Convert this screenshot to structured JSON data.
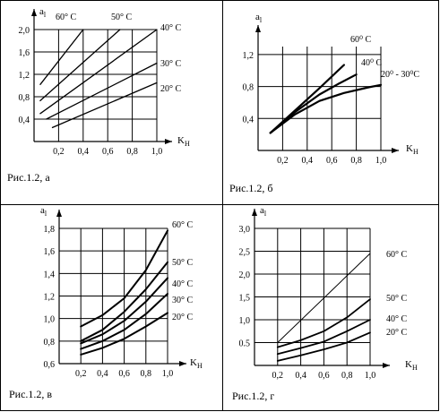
{
  "panels": [
    {
      "id": "a",
      "caption": "Рис.1.2, а",
      "ylabel": "a",
      "ylabel_sub": "l",
      "xlabel": "K",
      "xlabel_sub": "H",
      "chart_data": {
        "type": "line",
        "xlim": [
          0,
          1.0
        ],
        "ylim": [
          0,
          2.0
        ],
        "xticks": [
          "0,2",
          "0,4",
          "0,6",
          "0,8",
          "1,0"
        ],
        "yticks": [
          "0,4",
          "0,8",
          "1,2",
          "1,6",
          "2,0"
        ],
        "grid": true,
        "series": [
          {
            "name": "60° C",
            "x": [
              0.05,
              0.4
            ],
            "y": [
              1.02,
              2.0
            ],
            "width": 1.3
          },
          {
            "name": "50° C",
            "x": [
              0.05,
              0.7
            ],
            "y": [
              0.73,
              2.0
            ],
            "width": 1.3
          },
          {
            "name": "40° C",
            "x": [
              0.05,
              1.0
            ],
            "y": [
              0.5,
              2.0
            ],
            "width": 1.3
          },
          {
            "name": "30° C",
            "x": [
              0.1,
              1.0
            ],
            "y": [
              0.4,
              1.4
            ],
            "width": 1.3
          },
          {
            "name": "20° C",
            "x": [
              0.15,
              1.0
            ],
            "y": [
              0.25,
              1.05
            ],
            "width": 1.3
          }
        ]
      }
    },
    {
      "id": "b",
      "caption": "Рис.1.2, б",
      "ylabel": "a",
      "ylabel_sub": "l",
      "xlabel": "K",
      "xlabel_sub": "H",
      "chart_data": {
        "type": "line",
        "xlim": [
          0,
          1.0
        ],
        "ylim": [
          0,
          1.3
        ],
        "xticks": [
          "0,2",
          "0,4",
          "0,6",
          "0,8",
          "1,0"
        ],
        "yticks": [
          "0,4",
          "0,8",
          "1,2"
        ],
        "grid": true,
        "series": [
          {
            "name": "60⁰ C",
            "x": [
              0.1,
              0.3,
              0.5,
              0.7
            ],
            "y": [
              0.22,
              0.5,
              0.78,
              1.07
            ],
            "width": 2.2
          },
          {
            "name": "40⁰ C",
            "x": [
              0.1,
              0.3,
              0.5,
              0.65,
              0.8
            ],
            "y": [
              0.22,
              0.48,
              0.7,
              0.83,
              0.95
            ],
            "width": 2.2
          },
          {
            "name": "20⁰ - 30⁰C",
            "x": [
              0.1,
              0.3,
              0.5,
              0.7,
              0.9,
              1.0
            ],
            "y": [
              0.22,
              0.45,
              0.62,
              0.72,
              0.79,
              0.82
            ],
            "width": 2.2
          }
        ]
      }
    },
    {
      "id": "v",
      "caption": "Рис.1.2, в",
      "ylabel": "a",
      "ylabel_sub": "l",
      "xlabel": "K",
      "xlabel_sub": "H",
      "chart_data": {
        "type": "line",
        "xlim": [
          0,
          1.0
        ],
        "ylim": [
          0.6,
          1.8
        ],
        "xticks": [
          "0,2",
          "0,4",
          "0,6",
          "0,8",
          "1,0"
        ],
        "yticks": [
          "0,6",
          "0,8",
          "1,0",
          "1,2",
          "1,4",
          "1,6",
          "1,8"
        ],
        "grid": true,
        "series": [
          {
            "name": "60° C",
            "x": [
              0.2,
              0.4,
              0.6,
              0.8,
              1.0
            ],
            "y": [
              0.93,
              1.03,
              1.18,
              1.43,
              1.78
            ],
            "width": 2.0
          },
          {
            "name": "50° C",
            "x": [
              0.2,
              0.4,
              0.6,
              0.8,
              1.0
            ],
            "y": [
              0.8,
              0.9,
              1.06,
              1.26,
              1.5
            ],
            "width": 2.0
          },
          {
            "name": "40° C",
            "x": [
              0.2,
              0.4,
              0.6,
              0.8,
              1.0
            ],
            "y": [
              0.78,
              0.86,
              0.98,
              1.15,
              1.36
            ],
            "width": 2.0
          },
          {
            "name": "30° C",
            "x": [
              0.2,
              0.4,
              0.6,
              0.8,
              1.0
            ],
            "y": [
              0.73,
              0.8,
              0.9,
              1.04,
              1.22
            ],
            "width": 2.0
          },
          {
            "name": "20° C",
            "x": [
              0.2,
              0.4,
              0.6,
              0.8,
              1.0
            ],
            "y": [
              0.68,
              0.74,
              0.82,
              0.93,
              1.05
            ],
            "width": 2.0
          }
        ]
      }
    },
    {
      "id": "g",
      "caption": "Рис.1.2, г",
      "ylabel": "a",
      "ylabel_sub": "l",
      "xlabel": "K",
      "xlabel_sub": "H",
      "chart_data": {
        "type": "line",
        "xlim": [
          0,
          1.0
        ],
        "ylim": [
          0,
          3.0
        ],
        "xticks": [
          "0,2",
          "0,4",
          "0,6",
          "0,8",
          "1,0"
        ],
        "yticks": [
          "0.5",
          "1,0",
          "1,5",
          "2,0",
          "2,5",
          "3,0"
        ],
        "grid": true,
        "series": [
          {
            "name": "60° C",
            "x": [
              0.2,
              1.0
            ],
            "y": [
              0.5,
              2.45
            ],
            "width": 1.0
          },
          {
            "name": "50° C",
            "x": [
              0.2,
              0.4,
              0.6,
              0.8,
              1.0
            ],
            "y": [
              0.4,
              0.55,
              0.75,
              1.05,
              1.45
            ],
            "width": 1.8
          },
          {
            "name": "40° C",
            "x": [
              0.2,
              0.4,
              0.6,
              0.8,
              1.0
            ],
            "y": [
              0.25,
              0.38,
              0.52,
              0.75,
              1.0
            ],
            "width": 1.8
          },
          {
            "name": "20° C",
            "x": [
              0.2,
              0.4,
              0.6,
              0.8,
              1.0
            ],
            "y": [
              0.1,
              0.22,
              0.35,
              0.5,
              0.72
            ],
            "width": 1.8
          }
        ]
      }
    }
  ]
}
